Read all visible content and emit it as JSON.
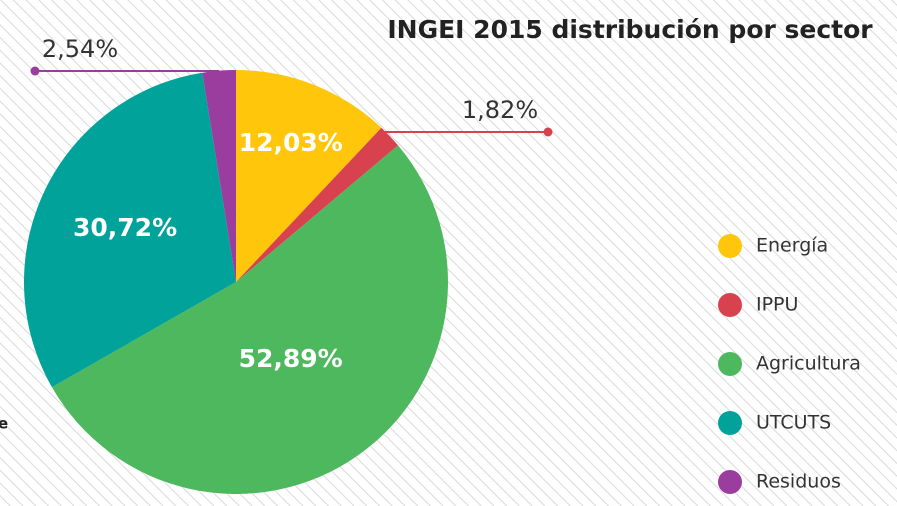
{
  "chart_data": {
    "type": "pie",
    "title": "INGEI 2015 distribución por sector",
    "annotation": "e",
    "categories": [
      "Energía",
      "IPPU",
      "Agricultura",
      "UTCUTS",
      "Residuos"
    ],
    "values": [
      12.03,
      1.82,
      52.89,
      30.72,
      2.54
    ],
    "value_labels": [
      "12,03%",
      "1,82%",
      "52,89%",
      "30,72%",
      "2,54%"
    ],
    "colors": [
      "#ffc60b",
      "#d8414e",
      "#4db85d",
      "#00a29a",
      "#9b3d9f"
    ],
    "legend": "right"
  }
}
